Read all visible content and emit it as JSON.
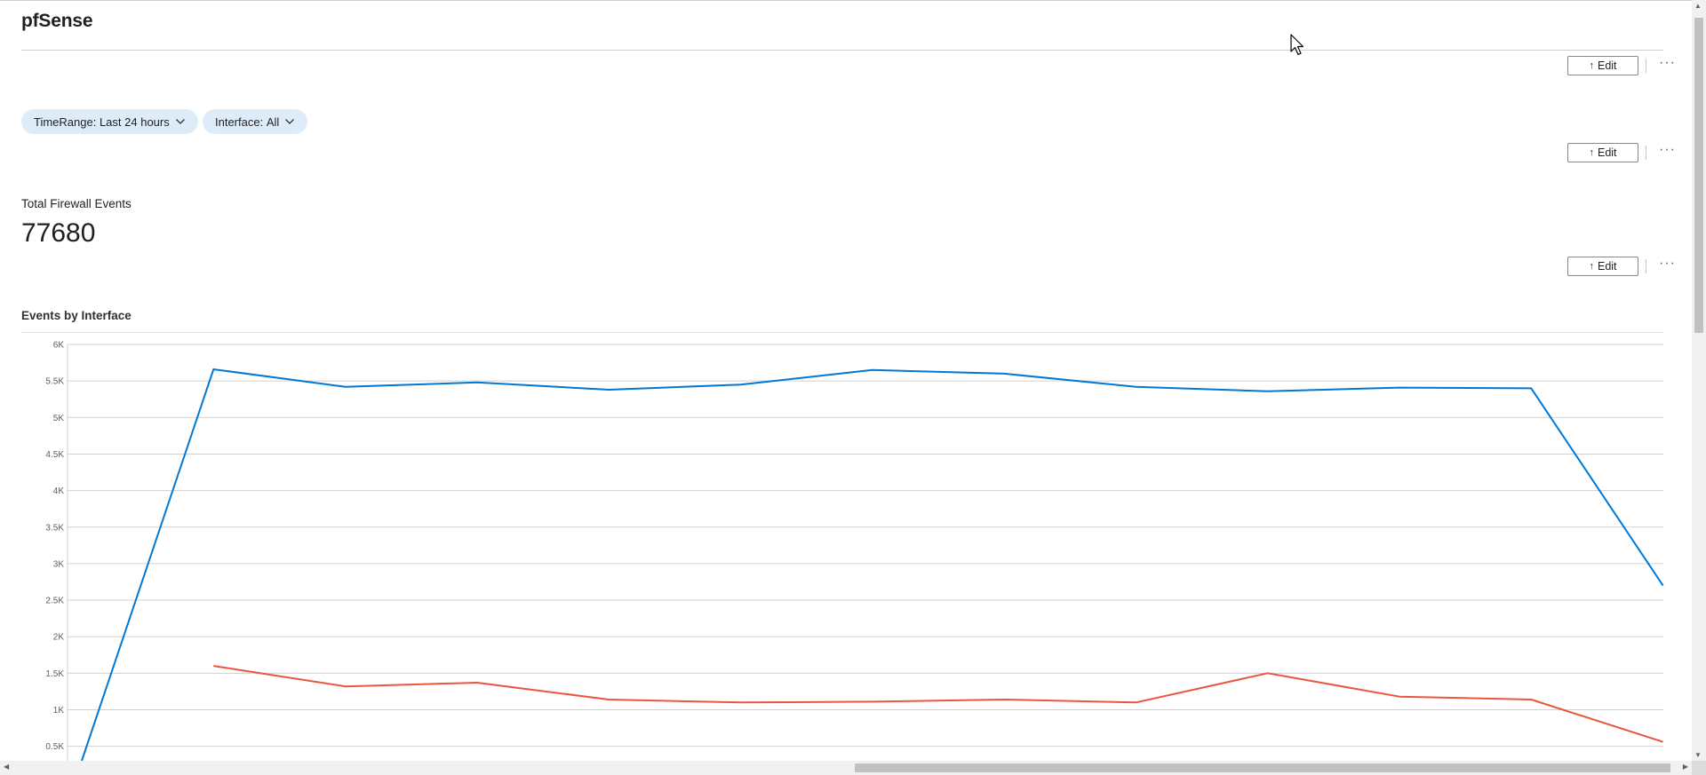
{
  "header": {
    "title": "pfSense"
  },
  "toolbar": {
    "edit_label": "Edit",
    "edit_icon": "up-arrow-icon",
    "more_label": "···"
  },
  "parameters": {
    "time_range": {
      "name": "TimeRange",
      "value": "Last 24 hours"
    },
    "interface": {
      "name": "Interface",
      "value": "All"
    }
  },
  "total_events": {
    "label": "Total Firewall Events",
    "value": "77680"
  },
  "chart_data": {
    "type": "line",
    "title": "Events by Interface",
    "yticks": [
      "0.5K",
      "1K",
      "1.5K",
      "2K",
      "2.5K",
      "3K",
      "3.5K",
      "4K",
      "4.5K",
      "5K",
      "5.5K",
      "6K"
    ],
    "ylim_visible": [
      400,
      6100
    ],
    "x_index": [
      0,
      1,
      2,
      3,
      4,
      5,
      6,
      7,
      8,
      9,
      10,
      11,
      12
    ],
    "series": [
      {
        "color": "#0078d4",
        "values": [
          400,
          5660,
          5420,
          5480,
          5380,
          5450,
          5650,
          5600,
          5420,
          5360,
          5410,
          5400,
          2700
        ]
      },
      {
        "color": "#e8563d",
        "values": [
          null,
          1600,
          1320,
          1370,
          1140,
          1100,
          1110,
          1140,
          1100,
          1500,
          1180,
          1140,
          560
        ]
      }
    ]
  },
  "colors": {
    "accent": "#0078d4",
    "pill_bg": "#deecf9"
  }
}
